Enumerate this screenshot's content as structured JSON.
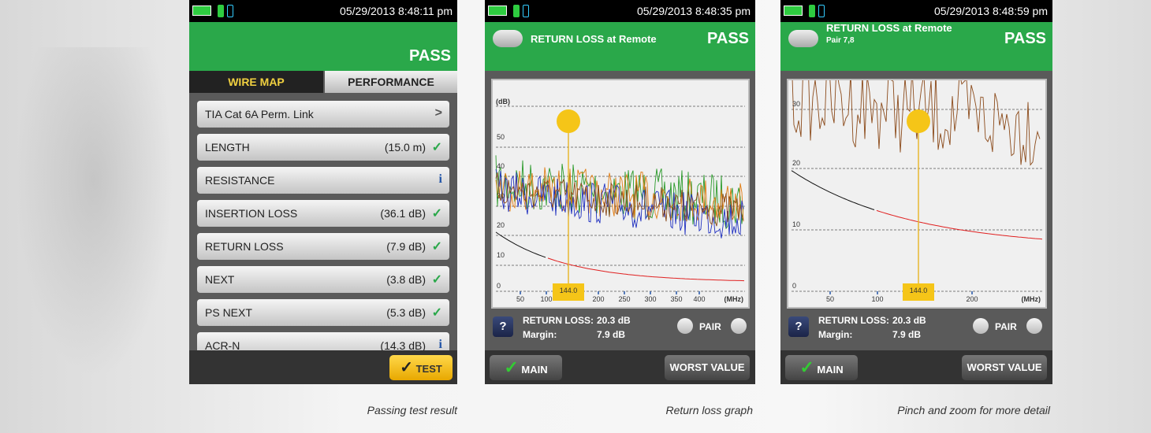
{
  "screens": [
    {
      "status_time": "05/29/2013 8:48:11 pm",
      "result": "PASS",
      "tabs": [
        "WIRE MAP",
        "PERFORMANCE"
      ],
      "items": [
        {
          "label": "TIA Cat 6A Perm. Link"
        },
        {
          "label": "LENGTH",
          "value": "(15.0 m)"
        },
        {
          "label": "RESISTANCE"
        },
        {
          "label": "INSERTION LOSS",
          "value": "(36.1 dB)"
        },
        {
          "label": "RETURN LOSS",
          "value": "(7.9 dB)"
        },
        {
          "label": "NEXT",
          "value": "(3.8 dB)"
        },
        {
          "label": "PS NEXT",
          "value": "(5.3 dB)"
        },
        {
          "label": "ACR-N",
          "value": "(14.3 dB)"
        }
      ],
      "button": "TEST",
      "caption": "Passing test result"
    },
    {
      "status_time": "05/29/2013 8:48:35 pm",
      "title": "RETURN LOSS at Remote",
      "result": "PASS",
      "graph": {
        "y_unit": "(dB)",
        "y_labels": [
          "50",
          "40",
          "30",
          "20",
          "10",
          "0"
        ],
        "x_labels": [
          "50",
          "100",
          "200",
          "250",
          "300",
          "350",
          "400"
        ],
        "x_unit": "(MHz)",
        "cursor": "144.0"
      },
      "readout": {
        "labels": [
          "RETURN LOSS:",
          "Margin:"
        ],
        "values": [
          "20.3 dB",
          "7.9 dB"
        ]
      },
      "pair": "PAIR",
      "buttons": [
        "MAIN",
        "WORST VALUE"
      ],
      "caption": "Return loss graph"
    },
    {
      "status_time": "05/29/2013 8:48:59 pm",
      "title": "RETURN LOSS at Remote",
      "subtitle": "Pair 7,8",
      "result": "PASS",
      "graph": {
        "y_labels": [
          "30",
          "20",
          "10",
          "0"
        ],
        "x_labels": [
          "50",
          "100",
          "200"
        ],
        "x_unit": "(MHz)",
        "cursor": "144.0"
      },
      "readout": {
        "labels": [
          "RETURN LOSS:",
          "Margin:"
        ],
        "values": [
          "20.3 dB",
          "7.9 dB"
        ]
      },
      "pair": "PAIR",
      "buttons": [
        "MAIN",
        "WORST VALUE"
      ],
      "caption": "Pinch and zoom for more detail"
    }
  ]
}
